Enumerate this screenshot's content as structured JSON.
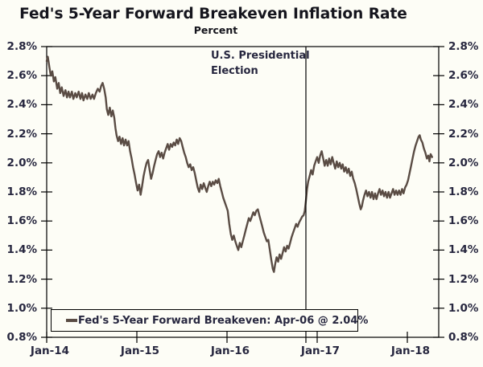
{
  "title": "Fed's 5-Year Forward Breakeven Inflation Rate",
  "subtitle": "Percent",
  "annotation": {
    "line1": "U.S. Presidential",
    "line2": "Election"
  },
  "legend": {
    "label": "Fed's 5-Year Forward Breakeven: Apr-06 @ 2.04%"
  },
  "colors": {
    "series": "#5a4c44",
    "axis": "#000000",
    "event_line": "#000000",
    "label_text": "#27273f",
    "title_text": "#15151d",
    "background": "#fdfdf6"
  },
  "chart_data": {
    "type": "line",
    "title": "Fed's 5-Year Forward Breakeven Inflation Rate",
    "ylabel": "Percent",
    "ylim": [
      0.8,
      2.8
    ],
    "x_months_range": [
      0,
      51.5
    ],
    "grid": false,
    "legend_position": "bottom-left-box",
    "y_ticks": [
      {
        "label": "2.8%",
        "value": 2.8
      },
      {
        "label": "2.6%",
        "value": 2.6
      },
      {
        "label": "2.4%",
        "value": 2.4
      },
      {
        "label": "2.2%",
        "value": 2.2
      },
      {
        "label": "2.0%",
        "value": 2.0
      },
      {
        "label": "1.8%",
        "value": 1.8
      },
      {
        "label": "1.6%",
        "value": 1.6
      },
      {
        "label": "1.4%",
        "value": 1.4
      },
      {
        "label": "1.2%",
        "value": 1.2
      },
      {
        "label": "1.0%",
        "value": 1.0
      },
      {
        "label": "0.8%",
        "value": 0.8
      }
    ],
    "x_ticks": [
      {
        "label": "Jan-14",
        "month": 0
      },
      {
        "label": "Jan-15",
        "month": 12
      },
      {
        "label": "Jan-16",
        "month": 24
      },
      {
        "label": "Jan-17",
        "month": 36
      },
      {
        "label": "Jan-18",
        "month": 48
      }
    ],
    "event_line": {
      "label": "U.S. Presidential Election",
      "month": 34.5
    },
    "series": [
      {
        "name": "Fed's 5-Year Forward Breakeven",
        "last_observation": "Apr-06 @ 2.04%",
        "points_months_value": [
          [
            0,
            2.7
          ],
          [
            0.15,
            2.73
          ],
          [
            0.35,
            2.66
          ],
          [
            0.55,
            2.6
          ],
          [
            0.75,
            2.63
          ],
          [
            0.95,
            2.56
          ],
          [
            1.15,
            2.59
          ],
          [
            1.4,
            2.51
          ],
          [
            1.6,
            2.55
          ],
          [
            1.8,
            2.48
          ],
          [
            2.0,
            2.52
          ],
          [
            2.25,
            2.46
          ],
          [
            2.5,
            2.5
          ],
          [
            2.7,
            2.45
          ],
          [
            2.9,
            2.49
          ],
          [
            3.1,
            2.45
          ],
          [
            3.35,
            2.49
          ],
          [
            3.55,
            2.44
          ],
          [
            3.8,
            2.48
          ],
          [
            4.0,
            2.45
          ],
          [
            4.25,
            2.49
          ],
          [
            4.5,
            2.44
          ],
          [
            4.7,
            2.48
          ],
          [
            4.9,
            2.43
          ],
          [
            5.15,
            2.47
          ],
          [
            5.4,
            2.44
          ],
          [
            5.6,
            2.48
          ],
          [
            5.85,
            2.44
          ],
          [
            6.1,
            2.47
          ],
          [
            6.3,
            2.44
          ],
          [
            6.55,
            2.48
          ],
          [
            6.8,
            2.51
          ],
          [
            7.05,
            2.49
          ],
          [
            7.25,
            2.53
          ],
          [
            7.45,
            2.55
          ],
          [
            7.65,
            2.51
          ],
          [
            7.85,
            2.45
          ],
          [
            8.0,
            2.37
          ],
          [
            8.2,
            2.33
          ],
          [
            8.4,
            2.38
          ],
          [
            8.6,
            2.32
          ],
          [
            8.8,
            2.36
          ],
          [
            9.0,
            2.31
          ],
          [
            9.15,
            2.24
          ],
          [
            9.3,
            2.19
          ],
          [
            9.5,
            2.15
          ],
          [
            9.7,
            2.18
          ],
          [
            9.9,
            2.13
          ],
          [
            10.1,
            2.17
          ],
          [
            10.3,
            2.12
          ],
          [
            10.5,
            2.16
          ],
          [
            10.7,
            2.12
          ],
          [
            10.9,
            2.15
          ],
          [
            11.1,
            2.08
          ],
          [
            11.3,
            2.03
          ],
          [
            11.5,
            1.97
          ],
          [
            11.7,
            1.92
          ],
          [
            11.9,
            1.86
          ],
          [
            12.1,
            1.81
          ],
          [
            12.3,
            1.85
          ],
          [
            12.5,
            1.78
          ],
          [
            12.7,
            1.84
          ],
          [
            12.9,
            1.91
          ],
          [
            13.1,
            1.96
          ],
          [
            13.3,
            2.0
          ],
          [
            13.5,
            2.02
          ],
          [
            13.7,
            1.95
          ],
          [
            13.9,
            1.89
          ],
          [
            14.1,
            1.93
          ],
          [
            14.3,
            1.98
          ],
          [
            14.5,
            2.02
          ],
          [
            14.7,
            2.06
          ],
          [
            14.9,
            2.08
          ],
          [
            15.1,
            2.04
          ],
          [
            15.3,
            2.07
          ],
          [
            15.5,
            2.03
          ],
          [
            15.7,
            2.07
          ],
          [
            15.9,
            2.1
          ],
          [
            16.1,
            2.13
          ],
          [
            16.3,
            2.09
          ],
          [
            16.5,
            2.13
          ],
          [
            16.7,
            2.11
          ],
          [
            16.9,
            2.14
          ],
          [
            17.1,
            2.12
          ],
          [
            17.3,
            2.16
          ],
          [
            17.5,
            2.13
          ],
          [
            17.7,
            2.17
          ],
          [
            17.9,
            2.15
          ],
          [
            18.1,
            2.11
          ],
          [
            18.3,
            2.07
          ],
          [
            18.5,
            2.04
          ],
          [
            18.7,
            2.0
          ],
          [
            18.9,
            1.97
          ],
          [
            19.1,
            1.99
          ],
          [
            19.3,
            1.95
          ],
          [
            19.5,
            1.97
          ],
          [
            19.7,
            1.93
          ],
          [
            19.9,
            1.88
          ],
          [
            20.1,
            1.83
          ],
          [
            20.3,
            1.8
          ],
          [
            20.5,
            1.85
          ],
          [
            20.7,
            1.82
          ],
          [
            20.9,
            1.86
          ],
          [
            21.1,
            1.83
          ],
          [
            21.3,
            1.8
          ],
          [
            21.5,
            1.84
          ],
          [
            21.7,
            1.87
          ],
          [
            21.9,
            1.84
          ],
          [
            22.1,
            1.87
          ],
          [
            22.3,
            1.85
          ],
          [
            22.5,
            1.88
          ],
          [
            22.7,
            1.86
          ],
          [
            22.9,
            1.89
          ],
          [
            23.1,
            1.84
          ],
          [
            23.3,
            1.8
          ],
          [
            23.5,
            1.76
          ],
          [
            23.7,
            1.73
          ],
          [
            23.9,
            1.7
          ],
          [
            24.1,
            1.67
          ],
          [
            24.3,
            1.58
          ],
          [
            24.5,
            1.51
          ],
          [
            24.7,
            1.47
          ],
          [
            24.9,
            1.5
          ],
          [
            25.1,
            1.46
          ],
          [
            25.3,
            1.43
          ],
          [
            25.5,
            1.4
          ],
          [
            25.7,
            1.45
          ],
          [
            25.9,
            1.42
          ],
          [
            26.1,
            1.46
          ],
          [
            26.3,
            1.5
          ],
          [
            26.5,
            1.54
          ],
          [
            26.7,
            1.58
          ],
          [
            26.9,
            1.62
          ],
          [
            27.1,
            1.6
          ],
          [
            27.3,
            1.63
          ],
          [
            27.5,
            1.66
          ],
          [
            27.7,
            1.64
          ],
          [
            27.9,
            1.67
          ],
          [
            28.1,
            1.68
          ],
          [
            28.3,
            1.64
          ],
          [
            28.5,
            1.6
          ],
          [
            28.7,
            1.56
          ],
          [
            28.9,
            1.52
          ],
          [
            29.1,
            1.49
          ],
          [
            29.3,
            1.46
          ],
          [
            29.5,
            1.47
          ],
          [
            29.7,
            1.4
          ],
          [
            29.9,
            1.33
          ],
          [
            30.1,
            1.27
          ],
          [
            30.25,
            1.25
          ],
          [
            30.4,
            1.3
          ],
          [
            30.6,
            1.35
          ],
          [
            30.8,
            1.32
          ],
          [
            31.0,
            1.37
          ],
          [
            31.2,
            1.34
          ],
          [
            31.4,
            1.38
          ],
          [
            31.6,
            1.42
          ],
          [
            31.8,
            1.39
          ],
          [
            32.0,
            1.43
          ],
          [
            32.2,
            1.41
          ],
          [
            32.4,
            1.45
          ],
          [
            32.6,
            1.49
          ],
          [
            32.8,
            1.52
          ],
          [
            33.0,
            1.55
          ],
          [
            33.2,
            1.58
          ],
          [
            33.4,
            1.56
          ],
          [
            33.6,
            1.59
          ],
          [
            33.8,
            1.61
          ],
          [
            34.0,
            1.63
          ],
          [
            34.2,
            1.64
          ],
          [
            34.35,
            1.67
          ],
          [
            34.5,
            1.74
          ],
          [
            34.65,
            1.82
          ],
          [
            34.8,
            1.87
          ],
          [
            35.0,
            1.91
          ],
          [
            35.2,
            1.95
          ],
          [
            35.4,
            1.92
          ],
          [
            35.6,
            1.98
          ],
          [
            35.8,
            2.01
          ],
          [
            36.0,
            2.04
          ],
          [
            36.2,
            2.0
          ],
          [
            36.4,
            2.05
          ],
          [
            36.6,
            2.08
          ],
          [
            36.8,
            2.03
          ],
          [
            37.0,
            1.98
          ],
          [
            37.2,
            2.02
          ],
          [
            37.4,
            1.98
          ],
          [
            37.6,
            2.03
          ],
          [
            37.8,
            1.99
          ],
          [
            38.0,
            2.04
          ],
          [
            38.2,
            2.0
          ],
          [
            38.4,
            1.96
          ],
          [
            38.6,
            2.01
          ],
          [
            38.8,
            1.97
          ],
          [
            39.0,
            2.0
          ],
          [
            39.2,
            1.96
          ],
          [
            39.4,
            1.99
          ],
          [
            39.6,
            1.94
          ],
          [
            39.8,
            1.97
          ],
          [
            40.0,
            1.93
          ],
          [
            40.2,
            1.96
          ],
          [
            40.4,
            1.91
          ],
          [
            40.6,
            1.94
          ],
          [
            40.8,
            1.89
          ],
          [
            41.0,
            1.86
          ],
          [
            41.2,
            1.82
          ],
          [
            41.4,
            1.77
          ],
          [
            41.6,
            1.72
          ],
          [
            41.8,
            1.68
          ],
          [
            41.95,
            1.7
          ],
          [
            42.1,
            1.74
          ],
          [
            42.3,
            1.78
          ],
          [
            42.5,
            1.81
          ],
          [
            42.7,
            1.77
          ],
          [
            42.9,
            1.8
          ],
          [
            43.1,
            1.76
          ],
          [
            43.3,
            1.8
          ],
          [
            43.5,
            1.75
          ],
          [
            43.7,
            1.79
          ],
          [
            43.9,
            1.75
          ],
          [
            44.1,
            1.79
          ],
          [
            44.3,
            1.82
          ],
          [
            44.5,
            1.78
          ],
          [
            44.7,
            1.81
          ],
          [
            44.9,
            1.77
          ],
          [
            45.1,
            1.8
          ],
          [
            45.3,
            1.76
          ],
          [
            45.5,
            1.8
          ],
          [
            45.7,
            1.76
          ],
          [
            45.9,
            1.79
          ],
          [
            46.1,
            1.82
          ],
          [
            46.3,
            1.78
          ],
          [
            46.5,
            1.81
          ],
          [
            46.7,
            1.78
          ],
          [
            46.9,
            1.81
          ],
          [
            47.1,
            1.78
          ],
          [
            47.3,
            1.82
          ],
          [
            47.5,
            1.79
          ],
          [
            47.7,
            1.83
          ],
          [
            47.9,
            1.85
          ],
          [
            48.1,
            1.88
          ],
          [
            48.3,
            1.93
          ],
          [
            48.5,
            1.98
          ],
          [
            48.7,
            2.03
          ],
          [
            48.9,
            2.08
          ],
          [
            49.1,
            2.12
          ],
          [
            49.3,
            2.15
          ],
          [
            49.5,
            2.18
          ],
          [
            49.65,
            2.19
          ],
          [
            49.8,
            2.16
          ],
          [
            50.0,
            2.14
          ],
          [
            50.2,
            2.1
          ],
          [
            50.4,
            2.07
          ],
          [
            50.6,
            2.03
          ],
          [
            50.8,
            2.05
          ],
          [
            50.95,
            2.01
          ],
          [
            51.1,
            2.06
          ],
          [
            51.3,
            2.04
          ]
        ]
      }
    ]
  }
}
